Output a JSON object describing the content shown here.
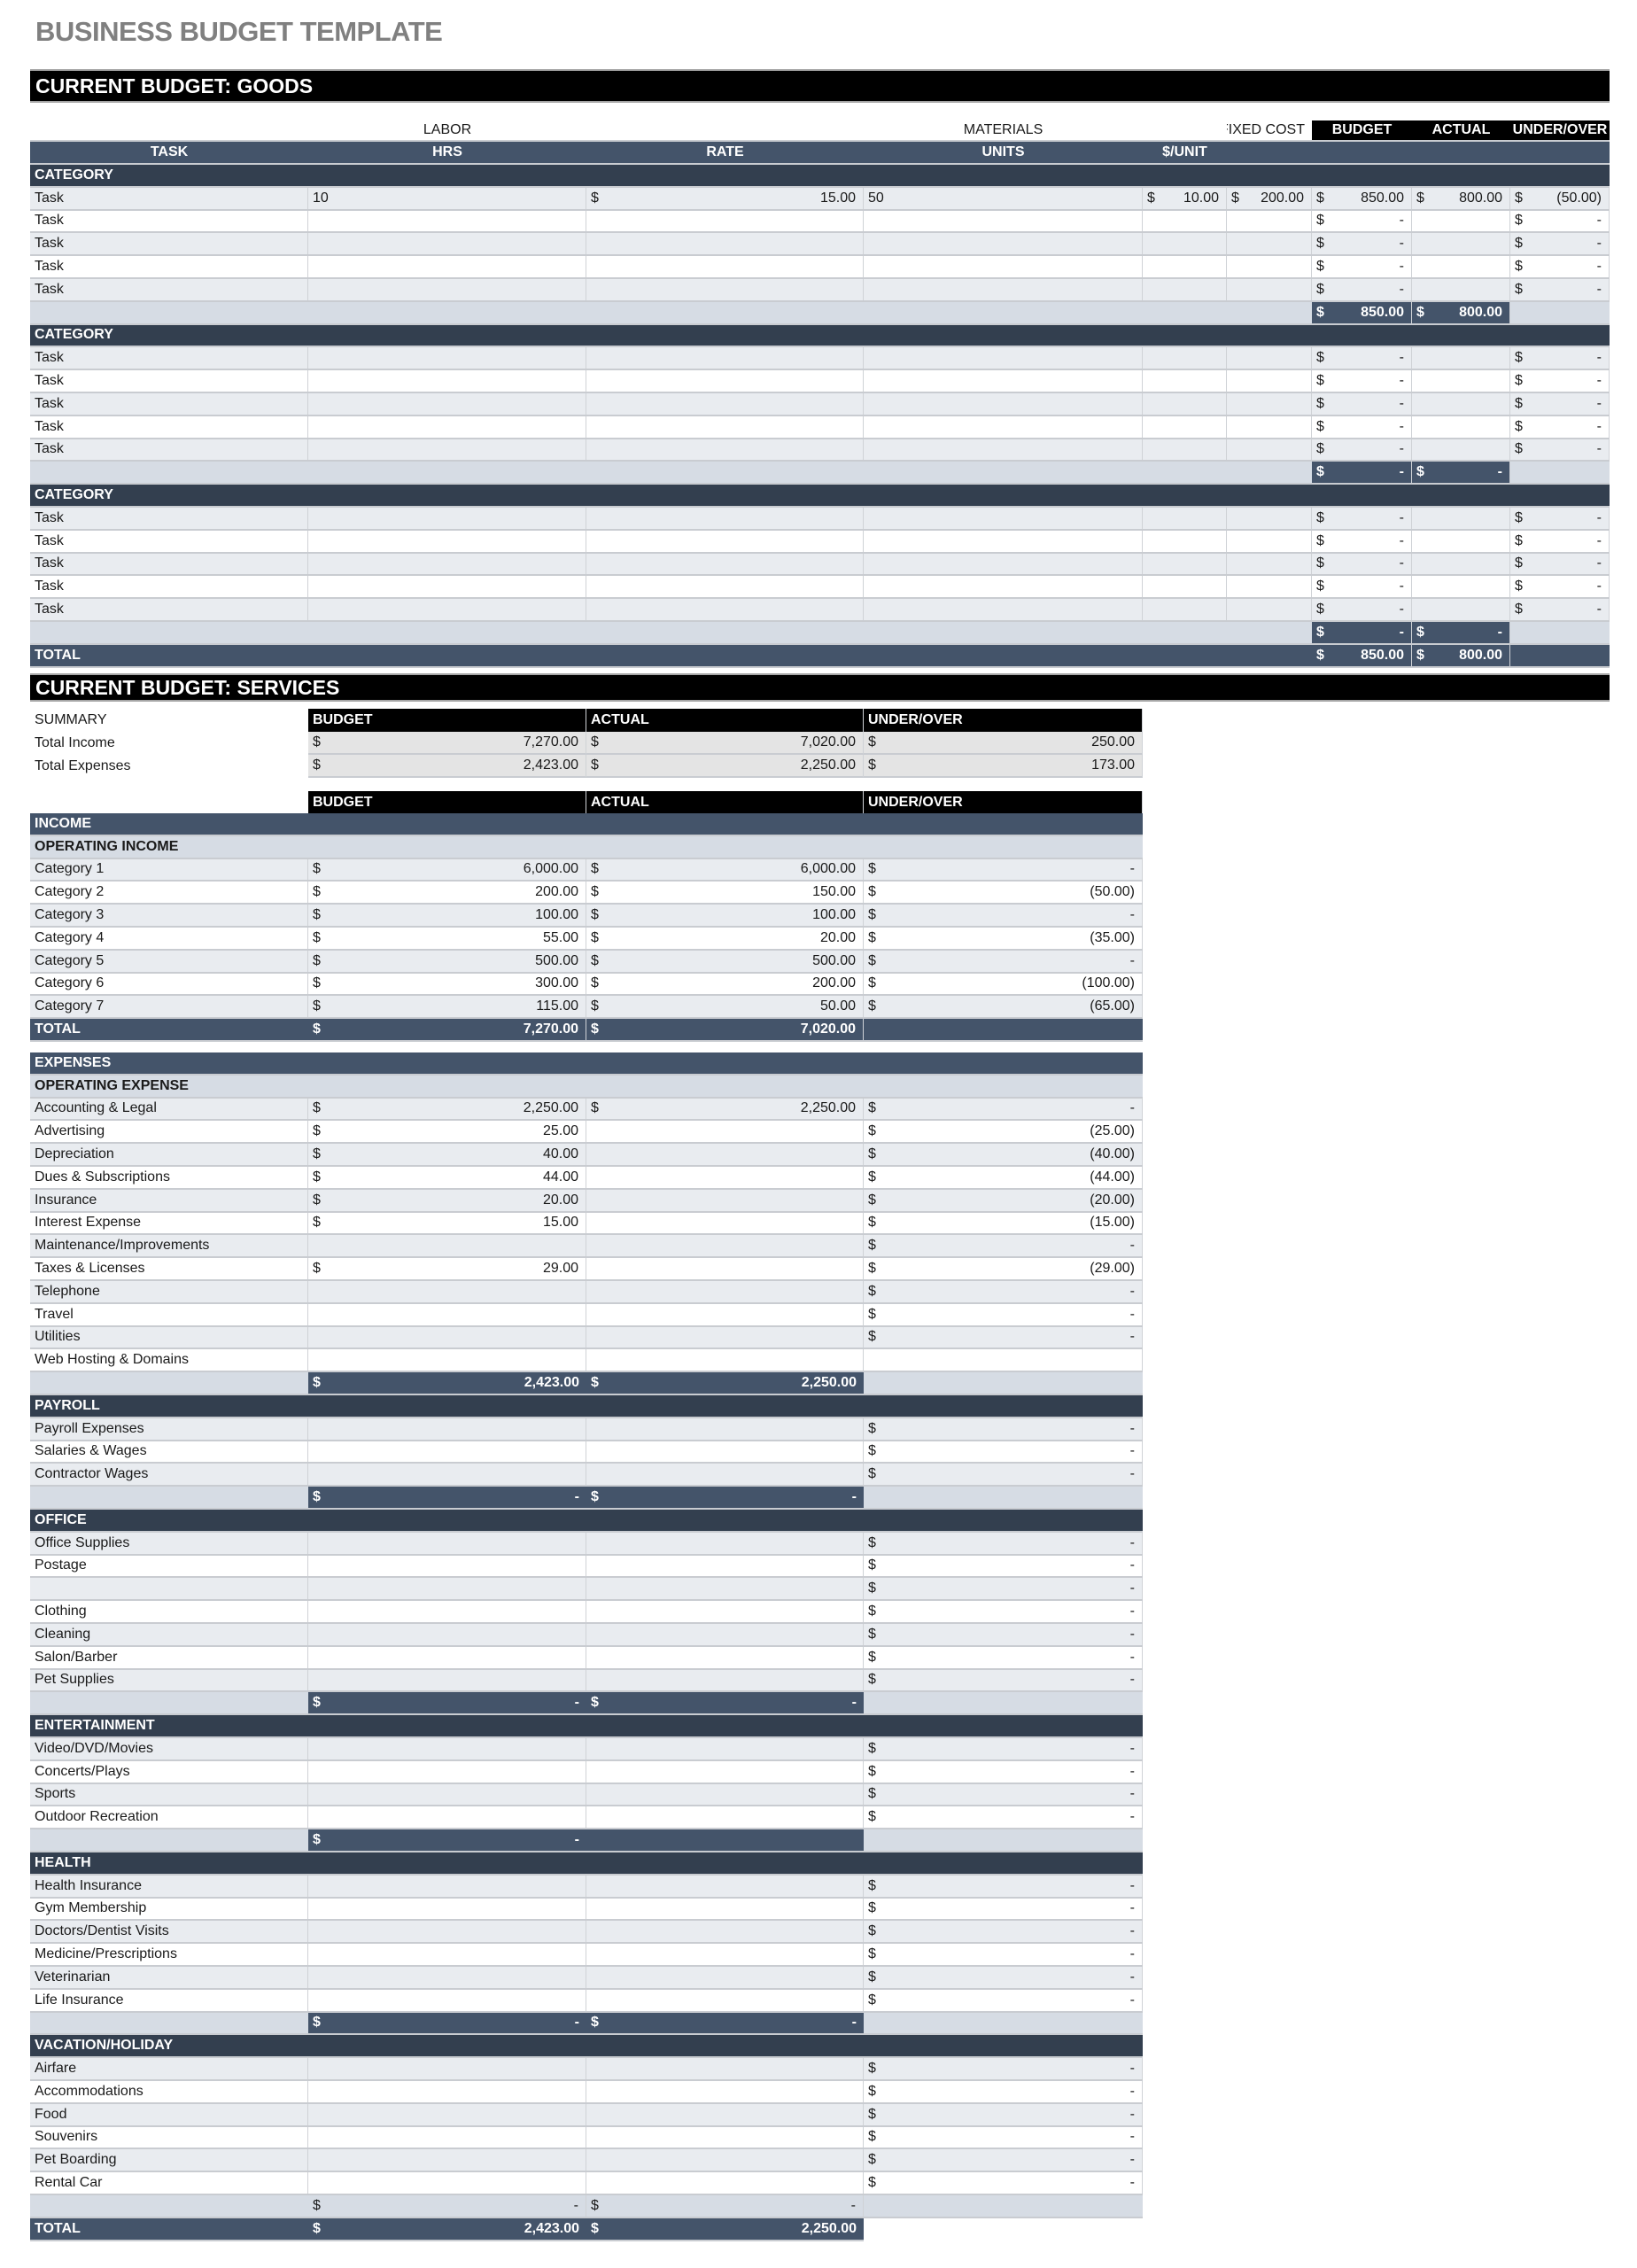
{
  "title": "BUSINESS BUDGET TEMPLATE",
  "currency_symbol": "$",
  "colors": {
    "header_black": "#000000",
    "slate": "#44546a",
    "category_dark": "#333f4f",
    "pale": "#d6dce4",
    "row_light": "#e9ecf0",
    "title_gray": "#808080"
  },
  "goods": {
    "section_title": "CURRENT BUDGET: GOODS",
    "group_headers": {
      "labor": "LABOR",
      "materials": "MATERIALS",
      "fixed_cost": "FIXED COST",
      "budget": "BUDGET",
      "actual": "ACTUAL",
      "under_over": "UNDER/OVER"
    },
    "columns": [
      "TASK",
      "HRS",
      "RATE",
      "UNITS",
      "$/UNIT"
    ],
    "categories": [
      {
        "label": "CATEGORY",
        "tasks": [
          {
            "task": "Task",
            "hrs": "10",
            "rate": "15.00",
            "units": "50",
            "unit_cost": "10.00",
            "fixed_cost": "200.00",
            "budget": "850.00",
            "actual": "800.00",
            "under_over": "(50.00)"
          },
          {
            "task": "Task",
            "budget": "-",
            "under_over": "-"
          },
          {
            "task": "Task",
            "budget": "-",
            "under_over": "-"
          },
          {
            "task": "Task",
            "budget": "-",
            "under_over": "-"
          },
          {
            "task": "Task",
            "budget": "-",
            "under_over": "-"
          }
        ],
        "subtotal": {
          "budget": "850.00",
          "actual": "800.00"
        }
      },
      {
        "label": "CATEGORY",
        "tasks": [
          {
            "task": "Task",
            "budget": "-",
            "under_over": "-"
          },
          {
            "task": "Task",
            "budget": "-",
            "under_over": "-"
          },
          {
            "task": "Task",
            "budget": "-",
            "under_over": "-"
          },
          {
            "task": "Task",
            "budget": "-",
            "under_over": "-"
          },
          {
            "task": "Task",
            "budget": "-",
            "under_over": "-"
          }
        ],
        "subtotal": {
          "budget": "-",
          "actual": "-"
        }
      },
      {
        "label": "CATEGORY",
        "tasks": [
          {
            "task": "Task",
            "budget": "-",
            "under_over": "-"
          },
          {
            "task": "Task",
            "budget": "-",
            "under_over": "-"
          },
          {
            "task": "Task",
            "budget": "-",
            "under_over": "-"
          },
          {
            "task": "Task",
            "budget": "-",
            "under_over": "-"
          },
          {
            "task": "Task",
            "budget": "-",
            "under_over": "-"
          }
        ],
        "subtotal": {
          "budget": "-",
          "actual": "-"
        }
      }
    ],
    "total": {
      "label": "TOTAL",
      "budget": "850.00",
      "actual": "800.00"
    }
  },
  "services": {
    "section_title": "CURRENT BUDGET: SERVICES",
    "summary": {
      "label": "SUMMARY",
      "headers": [
        "BUDGET",
        "ACTUAL",
        "UNDER/OVER"
      ],
      "rows": [
        {
          "label": "Total Income",
          "budget": "7,270.00",
          "actual": "7,020.00",
          "under_over": "250.00"
        },
        {
          "label": "Total Expenses",
          "budget": "2,423.00",
          "actual": "2,250.00",
          "under_over": "173.00"
        }
      ]
    },
    "headers": [
      "BUDGET",
      "ACTUAL",
      "UNDER/OVER"
    ],
    "income": {
      "label": "INCOME",
      "sub_label": "OPERATING INCOME",
      "items": [
        {
          "label": "Category 1",
          "budget": "6,000.00",
          "actual": "6,000.00",
          "under_over": "-"
        },
        {
          "label": "Category 2",
          "budget": "200.00",
          "actual": "150.00",
          "under_over": "(50.00)"
        },
        {
          "label": "Category 3",
          "budget": "100.00",
          "actual": "100.00",
          "under_over": "-"
        },
        {
          "label": "Category 4",
          "budget": "55.00",
          "actual": "20.00",
          "under_over": "(35.00)"
        },
        {
          "label": "Category 5",
          "budget": "500.00",
          "actual": "500.00",
          "under_over": "-"
        },
        {
          "label": "Category 6",
          "budget": "300.00",
          "actual": "200.00",
          "under_over": "(100.00)"
        },
        {
          "label": "Category 7",
          "budget": "115.00",
          "actual": "50.00",
          "under_over": "(65.00)"
        }
      ],
      "total": {
        "label": "TOTAL",
        "budget": "7,270.00",
        "actual": "7,020.00"
      }
    },
    "expenses": {
      "label": "EXPENSES",
      "groups": [
        {
          "label": "OPERATING EXPENSE",
          "items": [
            {
              "label": "Accounting & Legal",
              "budget": "2,250.00",
              "actual": "2,250.00",
              "under_over": "-"
            },
            {
              "label": "Advertising",
              "budget": "25.00",
              "under_over": "(25.00)"
            },
            {
              "label": "Depreciation",
              "budget": "40.00",
              "under_over": "(40.00)"
            },
            {
              "label": "Dues & Subscriptions",
              "budget": "44.00",
              "under_over": "(44.00)"
            },
            {
              "label": "Insurance",
              "budget": "20.00",
              "under_over": "(20.00)"
            },
            {
              "label": "Interest Expense",
              "budget": "15.00",
              "under_over": "(15.00)"
            },
            {
              "label": "Maintenance/Improvements",
              "under_over": "-"
            },
            {
              "label": "Taxes & Licenses",
              "budget": "29.00",
              "under_over": "(29.00)"
            },
            {
              "label": "Telephone",
              "under_over": "-"
            },
            {
              "label": "Travel",
              "under_over": "-"
            },
            {
              "label": "Utilities",
              "under_over": "-"
            },
            {
              "label": "Web Hosting & Domains"
            }
          ],
          "subtotal": {
            "budget": "2,423.00",
            "actual": "2,250.00"
          }
        },
        {
          "label": "PAYROLL",
          "items": [
            {
              "label": "Payroll Expenses",
              "under_over": "-"
            },
            {
              "label": "Salaries & Wages",
              "under_over": "-"
            },
            {
              "label": "Contractor Wages",
              "under_over": "-"
            }
          ],
          "subtotal": {
            "budget": "-",
            "actual": "-"
          }
        },
        {
          "label": "OFFICE",
          "items": [
            {
              "label": "Office Supplies",
              "under_over": "-"
            },
            {
              "label": "Postage",
              "under_over": "-"
            },
            {
              "label": "",
              "under_over": "-"
            },
            {
              "label": "Clothing",
              "under_over": "-"
            },
            {
              "label": "Cleaning",
              "under_over": "-"
            },
            {
              "label": "Salon/Barber",
              "under_over": "-"
            },
            {
              "label": "Pet Supplies",
              "under_over": "-"
            }
          ],
          "subtotal": {
            "budget": "-",
            "actual": "-"
          }
        },
        {
          "label": "ENTERTAINMENT",
          "items": [
            {
              "label": "Video/DVD/Movies",
              "under_over": "-"
            },
            {
              "label": "Concerts/Plays",
              "under_over": "-"
            },
            {
              "label": "Sports",
              "under_over": "-"
            },
            {
              "label": "Outdoor Recreation",
              "under_over": "-"
            }
          ],
          "subtotal": {
            "budget": "-"
          }
        },
        {
          "label": "HEALTH",
          "items": [
            {
              "label": "Health Insurance",
              "under_over": "-"
            },
            {
              "label": "Gym Membership",
              "under_over": "-"
            },
            {
              "label": "Doctors/Dentist Visits",
              "under_over": "-"
            },
            {
              "label": "Medicine/Prescriptions",
              "under_over": "-"
            },
            {
              "label": "Veterinarian",
              "under_over": "-"
            },
            {
              "label": "Life Insurance",
              "under_over": "-"
            }
          ],
          "subtotal": {
            "budget": "-",
            "actual": "-"
          }
        },
        {
          "label": "VACATION/HOLIDAY",
          "items": [
            {
              "label": "Airfare",
              "under_over": "-"
            },
            {
              "label": "Accommodations",
              "under_over": "-"
            },
            {
              "label": "Food",
              "under_over": "-"
            },
            {
              "label": "Souvenirs",
              "under_over": "-"
            },
            {
              "label": "Pet Boarding",
              "under_over": "-"
            },
            {
              "label": "Rental Car",
              "under_over": "-"
            }
          ],
          "subtotal": {
            "budget": "-",
            "actual": "-"
          }
        }
      ]
    },
    "total": {
      "label": "TOTAL",
      "budget": "2,423.00",
      "actual": "2,250.00"
    }
  }
}
